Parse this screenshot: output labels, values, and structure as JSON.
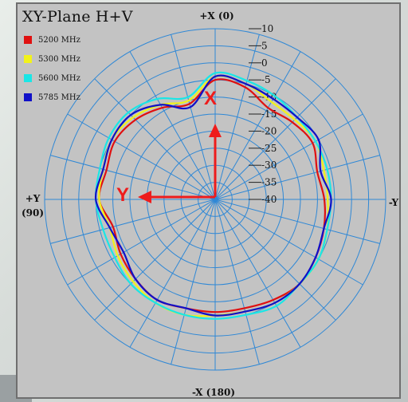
{
  "chart_data": {
    "type": "polar",
    "title": "XY-Plane  H+V",
    "radial_axis": {
      "unit": "dB",
      "ticks": [
        10,
        5,
        0,
        -5,
        -10,
        -15,
        -20,
        -25,
        -30,
        -35,
        -40
      ],
      "range": [
        -40,
        10
      ]
    },
    "angle_labels": {
      "top": "+X (0)",
      "left": "+Y",
      "left_sub": "(90)",
      "right": "-Y",
      "bottom": "-X (180)"
    },
    "angle_step_deg": 15,
    "legend_placement": "top-left",
    "series": [
      {
        "name": "5200 MHz",
        "color": "#e01010",
        "angles": [
          0,
          15,
          30,
          45,
          60,
          75,
          90,
          105,
          120,
          135,
          150,
          165,
          180,
          195,
          210,
          225,
          240,
          255,
          270,
          285,
          300,
          315,
          330,
          345
        ],
        "values": [
          -5,
          -11,
          -9,
          -7,
          -6,
          -7,
          -6,
          -9,
          -8,
          -7,
          -6,
          -7,
          -7,
          -7,
          -6,
          -5,
          -6,
          -7,
          -8,
          -9,
          -7,
          -8,
          -9,
          -6
        ]
      },
      {
        "name": "5300 MHz",
        "color": "#f2f21a",
        "angles": [
          0,
          15,
          30,
          45,
          60,
          75,
          90,
          105,
          120,
          135,
          150,
          165,
          180,
          195,
          210,
          225,
          240,
          255,
          270,
          285,
          300,
          315,
          330,
          345
        ],
        "values": [
          -4,
          -10,
          -8,
          -6,
          -5,
          -6,
          -6,
          -8,
          -7,
          -6,
          -5,
          -5,
          -6,
          -6,
          -5,
          -5,
          -5,
          -6,
          -7,
          -7,
          -6,
          -7,
          -7,
          -5
        ]
      },
      {
        "name": "5600 MHz",
        "color": "#1ae6e6",
        "angles": [
          0,
          15,
          30,
          45,
          60,
          75,
          90,
          105,
          120,
          135,
          150,
          165,
          180,
          195,
          210,
          225,
          240,
          255,
          270,
          285,
          300,
          315,
          330,
          345
        ],
        "values": [
          -3,
          -9,
          -6,
          -4,
          -4,
          -5,
          -5,
          -6,
          -6,
          -5,
          -5,
          -5,
          -5,
          -5,
          -4,
          -5,
          -5,
          -6,
          -6,
          -6,
          -6,
          -6,
          -5,
          -4
        ]
      },
      {
        "name": "5785 MHz",
        "color": "#1010c8",
        "angles": [
          0,
          15,
          30,
          45,
          60,
          75,
          90,
          105,
          120,
          135,
          150,
          165,
          180,
          195,
          210,
          225,
          240,
          255,
          270,
          285,
          300,
          315,
          330,
          345
        ],
        "values": [
          -4,
          -12,
          -8,
          -5,
          -5,
          -6,
          -5,
          -8,
          -9,
          -7,
          -6,
          -7,
          -6,
          -6,
          -5,
          -5,
          -6,
          -7,
          -6,
          -8,
          -5,
          -6,
          -6,
          -5
        ]
      }
    ]
  },
  "overlay": {
    "x_label": "X",
    "y_label": "Y",
    "arrow_color": "#ee1c1c"
  }
}
